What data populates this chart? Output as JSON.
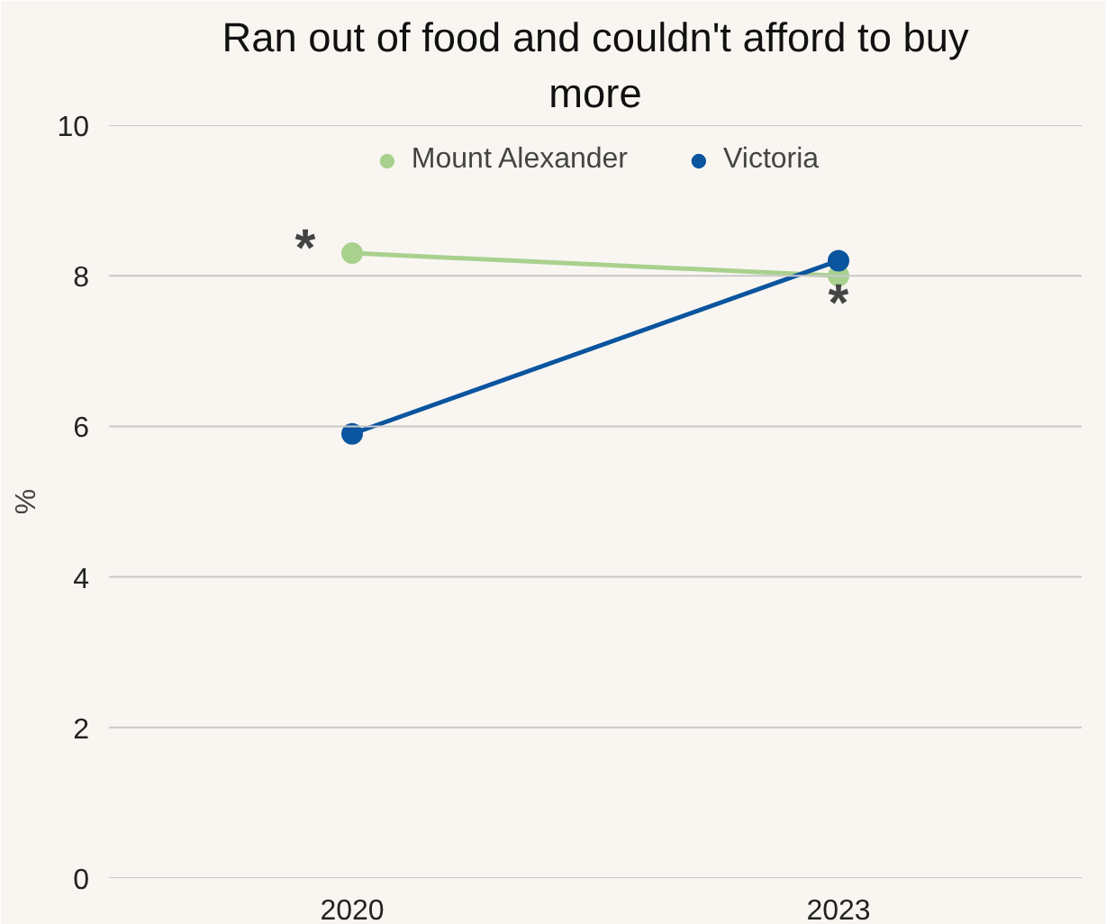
{
  "chart_data": {
    "type": "line",
    "title": "Ran out of food and couldn't afford to buy more",
    "ylabel": "%",
    "categories": [
      "2020",
      "2023"
    ],
    "series": [
      {
        "name": "Mount Alexander",
        "color": "#a9d18e",
        "values": [
          8.3,
          8.0
        ]
      },
      {
        "name": "Victoria",
        "color": "#0b559f",
        "values": [
          5.9,
          8.2
        ]
      }
    ],
    "ylim": [
      0,
      10
    ],
    "yticks": [
      0,
      2,
      4,
      6,
      8,
      10
    ],
    "grid": "y",
    "legend": "top",
    "marker": "circle",
    "line_style": "solid",
    "annotations": [
      {
        "text": "*",
        "x": "2020",
        "y": 8.3
      },
      {
        "text": "*",
        "x": "2023",
        "y": 8.0
      }
    ]
  }
}
